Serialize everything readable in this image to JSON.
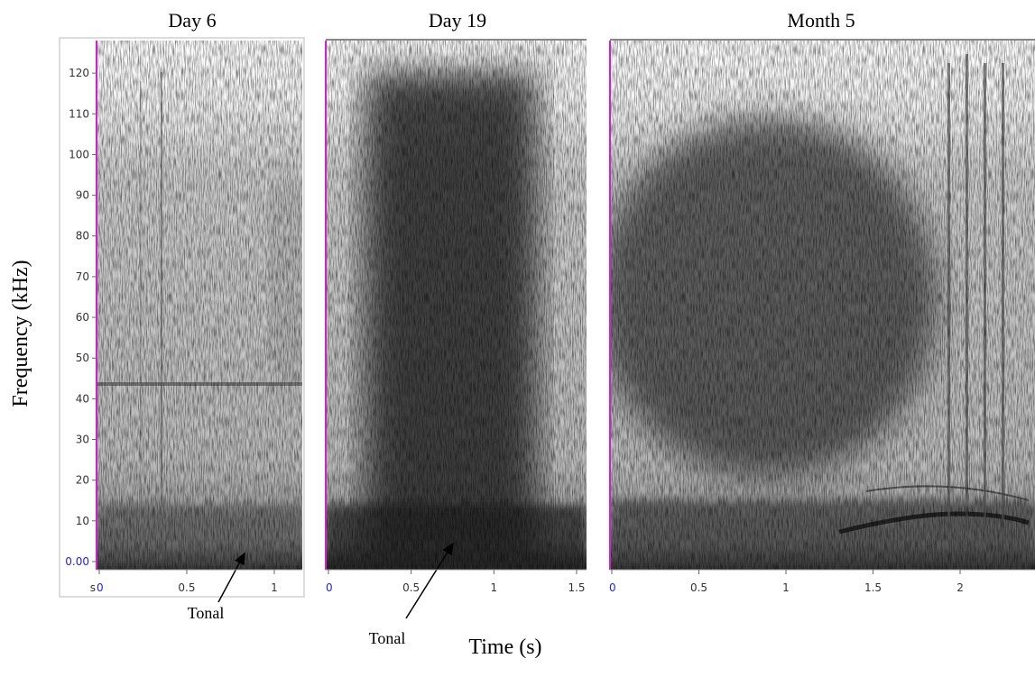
{
  "figure": {
    "y_label": "Frequency (kHz)",
    "x_label": "Time (s)"
  },
  "chart_data": [
    {
      "type": "spectrogram",
      "title": "Day 6",
      "x_unit": "s",
      "xlim": [
        0,
        1.16
      ],
      "xticks": [
        0,
        0.5,
        1
      ],
      "ylim": [
        -2,
        128
      ],
      "yticks": [
        {
          "value": 0,
          "label": "0.00"
        },
        10,
        20,
        30,
        40,
        50,
        60,
        70,
        80,
        90,
        100,
        110,
        120
      ],
      "annotations": [
        "Tonal"
      ]
    },
    {
      "type": "spectrogram",
      "title": "Day 19",
      "xlim": [
        0,
        1.56
      ],
      "xticks": [
        0,
        0.5,
        1,
        1.5
      ],
      "ylim": [
        -2,
        128
      ],
      "annotations": [
        "Tonal"
      ]
    },
    {
      "type": "spectrogram",
      "title": "Month 5",
      "xlim": [
        0,
        2.43
      ],
      "xticks": [
        0,
        0.5,
        1,
        1.5,
        2
      ],
      "ylim": [
        -2,
        128
      ]
    }
  ]
}
